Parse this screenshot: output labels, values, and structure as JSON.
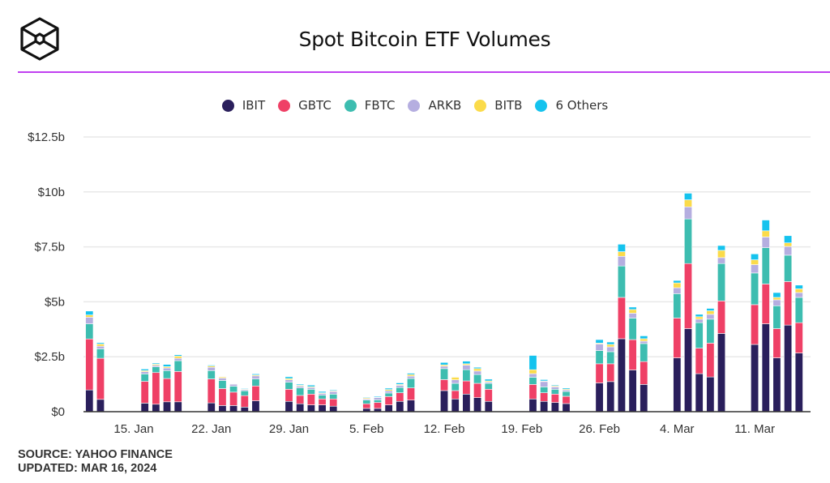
{
  "header": {
    "title": "Spot Bitcoin ETF Volumes",
    "logo_icon": "hex-cube-logo",
    "accent_color": "#c040f0"
  },
  "footer": {
    "source": "SOURCE: YAHOO FINANCE",
    "updated": "UPDATED: MAR 16, 2024"
  },
  "chart_data": {
    "type": "bar",
    "stacked": true,
    "title": "Spot Bitcoin ETF Volumes",
    "xlabel": "",
    "ylabel": "",
    "ylim": [
      0,
      12.5
    ],
    "y_unit": "billion USD",
    "yticks": [
      0,
      2.5,
      5,
      7.5,
      10,
      12.5
    ],
    "ytick_labels": [
      "$0",
      "$2.5b",
      "$5b",
      "$7.5b",
      "$10b",
      "$12.5b"
    ],
    "xtick_labels": [
      {
        "date": "2024-01-15",
        "label": "15. Jan"
      },
      {
        "date": "2024-01-22",
        "label": "22. Jan"
      },
      {
        "date": "2024-01-29",
        "label": "29. Jan"
      },
      {
        "date": "2024-02-05",
        "label": "5. Feb"
      },
      {
        "date": "2024-02-12",
        "label": "12. Feb"
      },
      {
        "date": "2024-02-19",
        "label": "19. Feb"
      },
      {
        "date": "2024-02-26",
        "label": "26. Feb"
      },
      {
        "date": "2024-03-04",
        "label": "4. Mar"
      },
      {
        "date": "2024-03-11",
        "label": "11. Mar"
      }
    ],
    "grid": true,
    "legend_position": "top",
    "categories": [
      "2024-01-11",
      "2024-01-12",
      "2024-01-16",
      "2024-01-17",
      "2024-01-18",
      "2024-01-19",
      "2024-01-22",
      "2024-01-23",
      "2024-01-24",
      "2024-01-25",
      "2024-01-26",
      "2024-01-29",
      "2024-01-30",
      "2024-01-31",
      "2024-02-01",
      "2024-02-02",
      "2024-02-05",
      "2024-02-06",
      "2024-02-07",
      "2024-02-08",
      "2024-02-09",
      "2024-02-12",
      "2024-02-13",
      "2024-02-14",
      "2024-02-15",
      "2024-02-16",
      "2024-02-20",
      "2024-02-21",
      "2024-02-22",
      "2024-02-23",
      "2024-02-26",
      "2024-02-27",
      "2024-02-28",
      "2024-02-29",
      "2024-03-01",
      "2024-03-04",
      "2024-03-05",
      "2024-03-06",
      "2024-03-07",
      "2024-03-08",
      "2024-03-11",
      "2024-03-12",
      "2024-03-13",
      "2024-03-14",
      "2024-03-15"
    ],
    "series": [
      {
        "name": "IBIT",
        "color": "#2a1f5c",
        "values": [
          0.99,
          0.56,
          0.39,
          0.34,
          0.45,
          0.45,
          0.4,
          0.28,
          0.28,
          0.21,
          0.5,
          0.47,
          0.36,
          0.31,
          0.31,
          0.25,
          0.15,
          0.15,
          0.31,
          0.47,
          0.53,
          0.96,
          0.58,
          0.8,
          0.64,
          0.47,
          0.58,
          0.47,
          0.42,
          0.37,
          1.31,
          1.37,
          3.32,
          1.9,
          1.24,
          2.45,
          3.78,
          1.73,
          1.58,
          3.56,
          3.06,
          4.0,
          2.45,
          3.94,
          2.67
        ]
      },
      {
        "name": "GBTC",
        "color": "#ef4066",
        "values": [
          2.32,
          1.87,
          0.99,
          1.44,
          1.06,
          1.38,
          1.09,
          0.77,
          0.61,
          0.52,
          0.67,
          0.55,
          0.38,
          0.49,
          0.27,
          0.33,
          0.21,
          0.27,
          0.38,
          0.39,
          0.55,
          0.5,
          0.38,
          0.6,
          0.65,
          0.55,
          0.66,
          0.39,
          0.38,
          0.33,
          0.87,
          0.81,
          1.88,
          1.38,
          1.04,
          1.81,
          2.96,
          1.16,
          1.54,
          1.48,
          1.81,
          1.81,
          1.33,
          1.98,
          1.38
        ]
      },
      {
        "name": "FBTC",
        "color": "#3dbdb0",
        "values": [
          0.69,
          0.43,
          0.34,
          0.26,
          0.36,
          0.49,
          0.38,
          0.37,
          0.27,
          0.22,
          0.32,
          0.32,
          0.34,
          0.22,
          0.17,
          0.22,
          0.17,
          0.12,
          0.16,
          0.24,
          0.43,
          0.5,
          0.33,
          0.51,
          0.4,
          0.27,
          0.33,
          0.27,
          0.22,
          0.22,
          0.6,
          0.55,
          1.43,
          0.98,
          0.82,
          1.11,
          2.03,
          1.16,
          1.09,
          1.7,
          1.44,
          1.65,
          1.04,
          1.2,
          1.15
        ]
      },
      {
        "name": "ARKB",
        "color": "#b5aee0",
        "values": [
          0.3,
          0.12,
          0.1,
          0.07,
          0.12,
          0.11,
          0.15,
          0.11,
          0.09,
          0.05,
          0.14,
          0.11,
          0.08,
          0.08,
          0.08,
          0.12,
          0.05,
          0.1,
          0.1,
          0.1,
          0.11,
          0.11,
          0.16,
          0.21,
          0.16,
          0.06,
          0.16,
          0.24,
          0.11,
          0.07,
          0.3,
          0.22,
          0.44,
          0.22,
          0.11,
          0.27,
          0.55,
          0.16,
          0.22,
          0.27,
          0.38,
          0.49,
          0.27,
          0.4,
          0.22
        ]
      },
      {
        "name": "BITB",
        "color": "#fbdb4a",
        "values": [
          0.1,
          0.1,
          0.05,
          0.05,
          0.06,
          0.1,
          0.06,
          0.05,
          0.02,
          0.03,
          0.04,
          0.06,
          0.04,
          0.04,
          0.03,
          0.03,
          0.04,
          0.02,
          0.06,
          0.04,
          0.07,
          0.06,
          0.12,
          0.06,
          0.11,
          0.05,
          0.18,
          0.03,
          0.04,
          0.04,
          0.04,
          0.11,
          0.21,
          0.17,
          0.11,
          0.22,
          0.32,
          0.11,
          0.16,
          0.33,
          0.22,
          0.28,
          0.11,
          0.16,
          0.17
        ]
      },
      {
        "name": "6 Others",
        "color": "#15c3ee",
        "values": [
          0.18,
          0.06,
          0.07,
          0.05,
          0.1,
          0.06,
          0.04,
          0.02,
          0.01,
          0.03,
          0.05,
          0.08,
          0.05,
          0.07,
          0.06,
          0.04,
          0.03,
          0.04,
          0.06,
          0.07,
          0.06,
          0.11,
          0.02,
          0.12,
          0.06,
          0.08,
          0.65,
          0.06,
          0.04,
          0.05,
          0.16,
          0.11,
          0.34,
          0.11,
          0.13,
          0.11,
          0.3,
          0.11,
          0.11,
          0.22,
          0.27,
          0.49,
          0.22,
          0.33,
          0.17
        ]
      }
    ]
  }
}
